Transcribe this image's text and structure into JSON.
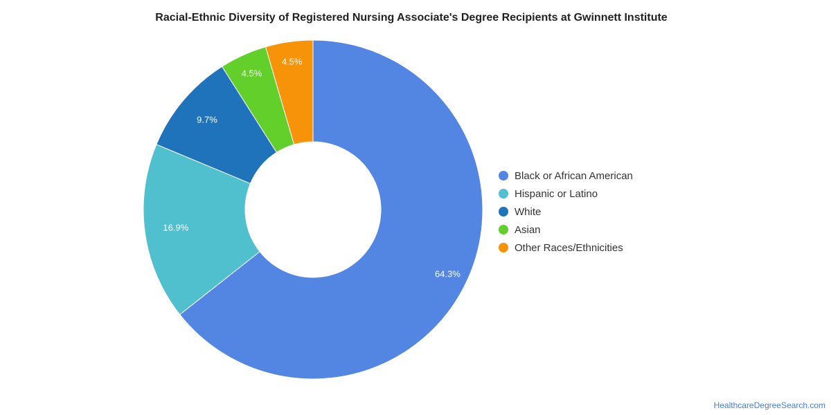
{
  "chart_data": {
    "type": "pie",
    "title": "Racial-Ethnic Diversity of Registered Nursing Associate's Degree Recipients at Gwinnett Institute",
    "legend_position": "right",
    "donut": true,
    "series": [
      {
        "name": "Black or African American",
        "value": 64.3,
        "label": "64.3%",
        "color": "#5385e3"
      },
      {
        "name": "Hispanic or Latino",
        "value": 16.9,
        "label": "16.9%",
        "color": "#50c0cf"
      },
      {
        "name": "White",
        "value": 9.7,
        "label": "9.7%",
        "color": "#1f73bb"
      },
      {
        "name": "Asian",
        "value": 4.5,
        "label": "4.5%",
        "color": "#63cf2a"
      },
      {
        "name": "Other Races/Ethnicities",
        "value": 4.5,
        "label": "4.5%",
        "color": "#f79308"
      }
    ]
  },
  "source": {
    "text": "HealthcareDegreeSearch.com"
  }
}
